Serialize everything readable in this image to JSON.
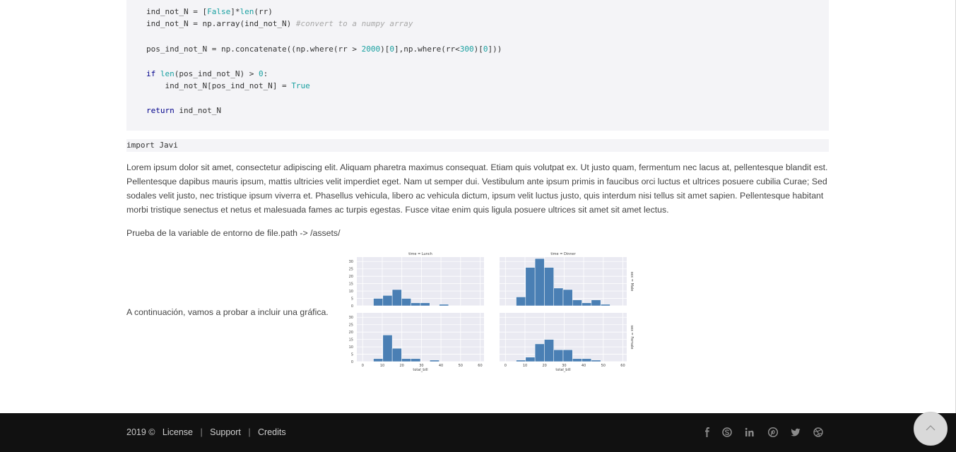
{
  "code": {
    "line1": {
      "a": "ind_not_N = [",
      "b": "False",
      "c": "]*",
      "d": "len",
      "e": "(rr)"
    },
    "line2": {
      "a": "ind_not_N = np.array(ind_not_N) ",
      "comment": "#convert to a numpy array"
    },
    "line3": {
      "a": "pos_ind_not_N = np.concatenate((np.where(rr > ",
      "n1": "2000",
      "b": ")[",
      "n2": "0",
      "c": "],np.where(rr<",
      "n3": "300",
      "d": ")[",
      "n4": "0",
      "e": "]))"
    },
    "line4": {
      "kw": "if",
      "sp": " ",
      "fn": "len",
      "a": "(pos_ind_not_N) > ",
      "n": "0",
      "b": ":"
    },
    "line5": {
      "a": "    ind_not_N[pos_ind_not_N] = ",
      "val": "True"
    },
    "line6": {
      "kw": "return",
      "a": " ind_not_N"
    }
  },
  "inline_code": "import Javi",
  "paragraph": "Lorem ipsum dolor sit amet, consectetur adipiscing elit. Aliquam pharetra maximus consequat. Etiam quis volutpat ex. Ut justo quam, fermentum nec lacus at, pellentesque blandit est. Pellentesque dapibus mauris ipsum, mattis ultricies velit imperdiet eget. Nam ut semper dui. Vestibulum ante ipsum primis in faucibus orci luctus et ultrices posuere cubilia Curae; Sed sodales velit justo, nec tristique ipsum viverra et. Phasellus vehicula, libero ac vehicula dictum, ipsum velit luctus justo, quis interdum nisi tellus sit amet sapien. Pellentesque habitant morbi tristique senectus et netus et malesuada fames ac turpis egestas. Fusce vitae enim quis ligula posuere ultrices sit amet sit amet lectus.",
  "env_text": "Prueba de la variable de entorno de file.path -> /assets/",
  "chart_caption": "A continuación, vamos a probar a incluir una gráfica.",
  "chart_data": {
    "type": "bar",
    "bar_color": "#4a7fb4",
    "grid": true,
    "xlabel": "total_bill",
    "xticks": [
      0,
      10,
      20,
      30,
      40,
      50,
      60
    ],
    "yticks": [
      0,
      5,
      10,
      15,
      20,
      25,
      30
    ],
    "xlim": [
      -3,
      62
    ],
    "ylim": [
      0,
      33
    ],
    "bin_edges": [
      5.5,
      10.3,
      15.1,
      19.9,
      24.7,
      29.5,
      34.3,
      39.1,
      43.9,
      48.7,
      53.5
    ],
    "facets": [
      {
        "col_title": "time = Lunch",
        "row_title": "",
        "values": [
          5,
          7,
          11,
          5,
          2,
          2,
          0,
          1,
          0,
          0
        ]
      },
      {
        "col_title": "time = Dinner",
        "row_title": "sex = Male",
        "values": [
          6,
          26,
          32,
          26,
          12,
          11,
          4,
          2,
          4,
          1
        ]
      },
      {
        "col_title": "",
        "row_title": "",
        "values": [
          2,
          18,
          9,
          2,
          2,
          0,
          1,
          0,
          0,
          0
        ]
      },
      {
        "col_title": "",
        "row_title": "sex = Female",
        "values": [
          1,
          3,
          12,
          15,
          8,
          8,
          2,
          2,
          1,
          0
        ]
      }
    ]
  },
  "footer": {
    "copyright": "2019 ©",
    "links": [
      "License",
      "Support",
      "Credits"
    ],
    "separator": "|",
    "social_icons": [
      "facebook-icon",
      "skype-icon",
      "linkedin-icon",
      "pinterest-icon",
      "twitter-icon",
      "dribbble-icon"
    ]
  },
  "colors": {
    "footer_bg": "#111111",
    "code_bg": "#f4f4f7",
    "keyword": "#00008b",
    "builtin": "#1aa1a1"
  }
}
